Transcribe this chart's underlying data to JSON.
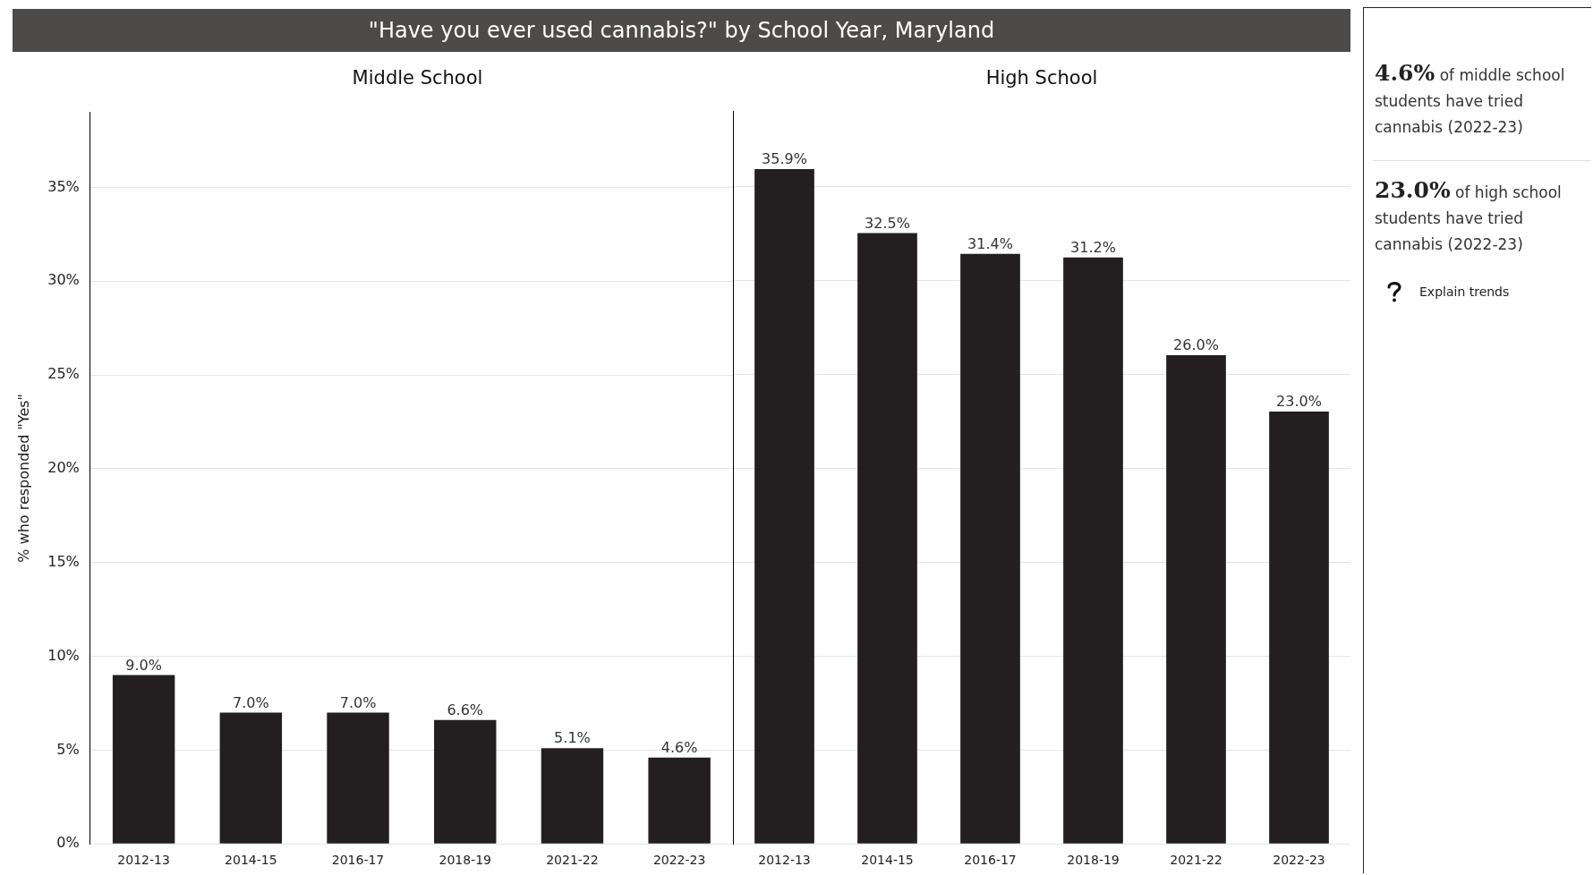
{
  "chart_data": [
    {
      "type": "bar",
      "title": "\"Have you ever used cannabis?\" by School Year, Maryland",
      "subtitle": "Middle School",
      "ylabel": "% who responded \"Yes\"",
      "categories": [
        "2012-13",
        "2014-15",
        "2016-17",
        "2018-19",
        "2021-22",
        "2022-23"
      ],
      "values": [
        9.0,
        7.0,
        7.0,
        6.6,
        5.1,
        4.6
      ],
      "value_labels": [
        "9.0%",
        "7.0%",
        "7.0%",
        "6.6%",
        "5.1%",
        "4.6%"
      ],
      "color": "#231f20",
      "ylim": [
        0,
        39
      ],
      "yticks": [
        {
          "value": 0,
          "label": "0%"
        },
        {
          "value": 5,
          "label": "5%"
        },
        {
          "value": 10,
          "label": "10%"
        },
        {
          "value": 15,
          "label": "15%"
        },
        {
          "value": 20,
          "label": "20%"
        },
        {
          "value": 25,
          "label": "25%"
        },
        {
          "value": 30,
          "label": "30%"
        },
        {
          "value": 35,
          "label": "35%"
        }
      ],
      "grid": "y"
    },
    {
      "type": "bar",
      "title": "High School",
      "categories": [
        "2012-13",
        "2014-15",
        "2016-17",
        "2018-19",
        "2021-22",
        "2022-23"
      ],
      "values": [
        35.9,
        32.5,
        31.4,
        31.2,
        26.0,
        23.0
      ],
      "value_labels": [
        "35.9%",
        "32.5%",
        "31.4%",
        "31.2%",
        "26.0%",
        "23.0%"
      ],
      "color": "#231f20",
      "ylim": [
        0,
        39
      ],
      "yticks": [
        {
          "value": 0,
          "label": null
        },
        {
          "value": 5,
          "label": null
        },
        {
          "value": 10,
          "label": null
        },
        {
          "value": 15,
          "label": null
        },
        {
          "value": 20,
          "label": null
        },
        {
          "value": 25,
          "label": null
        },
        {
          "value": 30,
          "label": null
        },
        {
          "value": 35,
          "label": null
        }
      ],
      "grid": "y",
      "tick_labels": "x"
    },
    {
      "type": "other",
      "annotations": [
        "4.6%",
        "of middle school students have tried cannabis (2022-23)",
        "23.0%",
        "of high school students have tried cannabis (2022-23)",
        "Explain trends"
      ]
    }
  ]
}
